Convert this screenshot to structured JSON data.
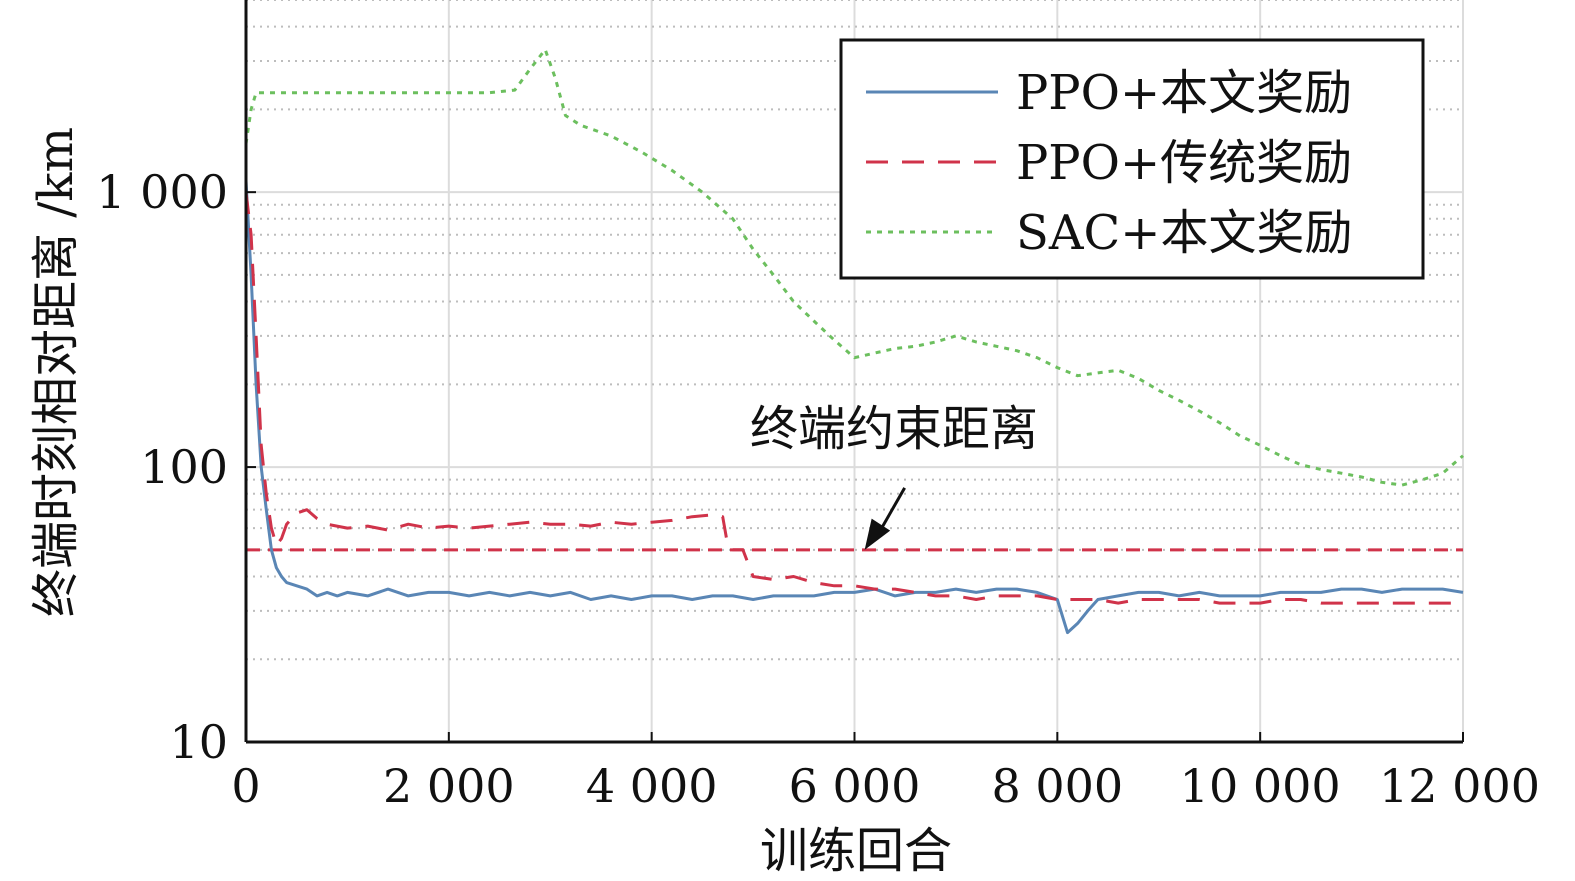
{
  "chart_data": {
    "type": "line",
    "xlabel": "训练回合",
    "ylabel": "终端时刻相对距离 /km",
    "xlim": [
      0,
      12000
    ],
    "ylim": [
      10,
      5000
    ],
    "yscale": "log",
    "grid": true,
    "x_ticks": [
      0,
      2000,
      4000,
      6000,
      8000,
      10000,
      12000
    ],
    "x_tick_labels": [
      "0",
      "2 000",
      "4 000",
      "6 000",
      "8 000",
      "10 000",
      "12 000"
    ],
    "y_ticks": [
      10,
      100,
      1000
    ],
    "y_tick_labels": [
      "10",
      "100",
      "1 000"
    ],
    "legend_position": "top-right",
    "annotation": {
      "text": "终端约束距离",
      "target": [
        6100,
        50
      ]
    },
    "reference_line": {
      "y": 50,
      "color": "#d0334a"
    },
    "series": [
      {
        "name": "PPO+本文奖励",
        "color": "#5a86b5",
        "style": "solid",
        "x": [
          0,
          50,
          100,
          150,
          200,
          250,
          300,
          350,
          400,
          500,
          600,
          700,
          800,
          900,
          1000,
          1200,
          1400,
          1600,
          1800,
          2000,
          2200,
          2400,
          2600,
          2800,
          3000,
          3200,
          3400,
          3600,
          3800,
          4000,
          4200,
          4400,
          4600,
          4800,
          5000,
          5200,
          5400,
          5600,
          5800,
          6000,
          6200,
          6400,
          6600,
          6800,
          7000,
          7200,
          7400,
          7600,
          7800,
          8000,
          8100,
          8200,
          8300,
          8400,
          8600,
          8800,
          9000,
          9200,
          9400,
          9600,
          9800,
          10000,
          10200,
          10400,
          10600,
          10800,
          11000,
          11200,
          11400,
          11600,
          11800,
          12000
        ],
        "y": [
          1100,
          500,
          200,
          100,
          70,
          50,
          43,
          40,
          38,
          37,
          36,
          34,
          35,
          34,
          35,
          34,
          36,
          34,
          35,
          35,
          34,
          35,
          34,
          35,
          34,
          35,
          33,
          34,
          33,
          34,
          34,
          33,
          34,
          34,
          33,
          34,
          34,
          34,
          35,
          35,
          36,
          34,
          35,
          35,
          36,
          35,
          36,
          36,
          35,
          33,
          25,
          27,
          30,
          33,
          34,
          35,
          35,
          34,
          35,
          34,
          34,
          34,
          35,
          35,
          35,
          36,
          36,
          35,
          36,
          36,
          36,
          35
        ]
      },
      {
        "name": "PPO+传统奖励",
        "color": "#d0334a",
        "style": "dashed",
        "x": [
          0,
          50,
          100,
          150,
          200,
          250,
          300,
          350,
          400,
          500,
          600,
          700,
          800,
          1000,
          1200,
          1400,
          1600,
          1800,
          2000,
          2200,
          2400,
          2600,
          2800,
          3000,
          3200,
          3400,
          3600,
          3800,
          4000,
          4200,
          4400,
          4600,
          4700,
          4750,
          4800,
          4900,
          5000,
          5200,
          5400,
          5600,
          5800,
          6000,
          6200,
          6400,
          6600,
          6800,
          7000,
          7200,
          7400,
          7600,
          7800,
          8000,
          8200,
          8400,
          8600,
          8800,
          9000,
          9200,
          9400,
          9600,
          9800,
          10000,
          10200,
          10400,
          10600,
          10800,
          11000,
          11200,
          11400,
          11600,
          11800,
          12000
        ],
        "y": [
          1000,
          700,
          300,
          120,
          80,
          60,
          52,
          55,
          62,
          68,
          70,
          65,
          62,
          60,
          61,
          59,
          62,
          60,
          61,
          60,
          61,
          62,
          63,
          62,
          62,
          61,
          63,
          62,
          63,
          64,
          66,
          67,
          66,
          52,
          50,
          50,
          40,
          39,
          40,
          38,
          37,
          37,
          36,
          36,
          35,
          34,
          34,
          33,
          34,
          34,
          34,
          33,
          33,
          33,
          32,
          33,
          33,
          33,
          33,
          32,
          32,
          32,
          33,
          33,
          32,
          32,
          32,
          32,
          32,
          32,
          32,
          32
        ]
      },
      {
        "name": "SAC+本文奖励",
        "color": "#6cbf5e",
        "style": "dotted",
        "x": [
          0,
          50,
          100,
          200,
          400,
          800,
          1200,
          1600,
          2000,
          2400,
          2650,
          2800,
          2950,
          3050,
          3150,
          3300,
          3600,
          3900,
          4200,
          4500,
          4800,
          5000,
          5200,
          5400,
          5600,
          5800,
          6000,
          6200,
          6400,
          6600,
          6800,
          7000,
          7200,
          7400,
          7600,
          7800,
          8000,
          8200,
          8400,
          8600,
          8800,
          9000,
          9200,
          9400,
          9600,
          9800,
          10000,
          10200,
          10400,
          10600,
          10800,
          11000,
          11200,
          11400,
          11600,
          11800,
          12000
        ],
        "y": [
          1500,
          2000,
          2300,
          2300,
          2300,
          2300,
          2300,
          2300,
          2300,
          2300,
          2350,
          2800,
          3300,
          2600,
          1900,
          1750,
          1600,
          1400,
          1200,
          1000,
          800,
          620,
          500,
          400,
          340,
          290,
          250,
          260,
          270,
          275,
          285,
          300,
          285,
          275,
          265,
          250,
          230,
          215,
          220,
          225,
          210,
          190,
          175,
          160,
          145,
          130,
          120,
          110,
          102,
          98,
          95,
          92,
          88,
          86,
          90,
          95,
          110
        ]
      }
    ]
  }
}
